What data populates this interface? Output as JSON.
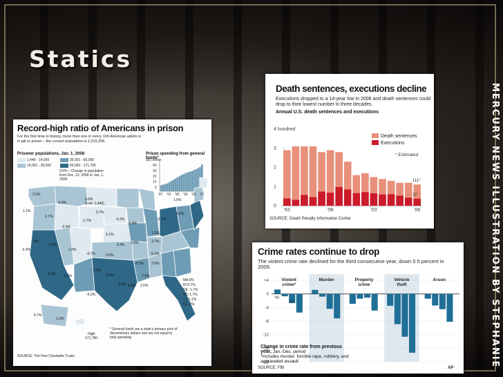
{
  "slide": {
    "title": "Statics",
    "credit": "MERCURY NEWS ILLUSTRATION BY STEPHANIE"
  },
  "prison_map": {
    "title": "Record-high ratio of Americans in prison",
    "subtitle": "For the first time in history, more than one in every 100 American adults is in jail or prison – the current population is 2,319,258.",
    "legend_title": "Prisoner populations, Jan. 1, 2008",
    "legend": [
      {
        "label": "1,440 - 14,000",
        "color": "#dfe9ef"
      },
      {
        "label": "14,001 - 35,000",
        "color": "#a9c5d4"
      },
      {
        "label": "35,001 - 65,000",
        "color": "#6e9cb5"
      },
      {
        "label": "65,001 - 171,790",
        "color": "#2f6786"
      }
    ],
    "change_note": "XX% – Change in population from Dec. 31, 2006 to Jan. 1, 2008",
    "spending_title": "Prison spending from general funds*",
    "spending_axis": [
      "$50 billion",
      "40",
      "30",
      "20",
      "10",
      "0"
    ],
    "spending_years": [
      "'87",
      "'91",
      "'95",
      "'99",
      "'03",
      "'07"
    ],
    "state_labels": [
      "3.3%",
      "5.6%",
      "(Low: 1,440)",
      "-3.9%",
      "1.1%",
      "2.7%",
      "5.7%",
      "-1.7%",
      "-2.9%",
      "-3.2%",
      "-2.4%",
      "-3.7%",
      "1.5%",
      "6.6%",
      "6.1%",
      "5%",
      "1.6%",
      "1.8%",
      "-0.7%",
      "0.5%",
      "6.4%",
      "3.2%",
      "1.2%",
      "5.1%",
      "-2.3%",
      "5.3%",
      "-1.5%",
      "-1.2%",
      "4.3%",
      "4.1%",
      "4.0%",
      "2.5%",
      "-6.2%",
      "1.3%",
      "4.7%",
      "High: 171,790",
      "3.7%",
      "7.2%",
      "2.0%",
      "-0.5%"
    ],
    "table": [
      "MA  0%",
      "RI  0.7%",
      "DE -1.7%",
      "MD  1.7%",
      "CT  1.1%",
      "NJ  -2%"
    ],
    "footnote": "* General funds are a state's primary pool of discretionary dollars and are not equal to total spending",
    "high_label": "High: 171,790",
    "source": "SOURCE: The Pew Charitable Trusts"
  },
  "executions_chart": {
    "title": "Death sentences, executions decline",
    "subtitle": "Executions dropped to a 14-year low in 2008 and death sentences could drop to their lowest number in three decades.",
    "chart_subtitle": "Annual U.S. death sentences and executions",
    "source": "SOURCE: Death Penalty Information Center"
  },
  "crime_chart": {
    "title": "Crime rates continue to drop",
    "subtitle": "The violent crime rate declined for the third consecutive year, down 5.5 percent in 2009.",
    "note_title": "Change in crime rate from previous year,",
    "note_period": "Jan.-Dec. period",
    "note_footnote": "*Includes murder, forcible rape, robbery, and aggravated assault",
    "source": "SOURCE: FBI",
    "credit": "AP"
  },
  "chart_data": [
    {
      "type": "bar",
      "title": "Death sentences, executions decline",
      "xlabel": "",
      "ylabel": "",
      "y_tick_labels": [
        "0",
        "1",
        "2",
        "3",
        "4 hundred"
      ],
      "ylim": [
        0,
        4
      ],
      "x_tick_labels": [
        "'93",
        "'98",
        "'03",
        "'08"
      ],
      "categories": [
        "1993",
        "1994",
        "1995",
        "1996",
        "1997",
        "1998",
        "1999",
        "2000",
        "2001",
        "2002",
        "2003",
        "2004",
        "2005",
        "2006",
        "2007",
        "2008"
      ],
      "series": [
        {
          "name": "Death sentences",
          "color": "#e8907a",
          "values": [
            2.9,
            3.1,
            3.1,
            3.1,
            2.8,
            2.9,
            2.8,
            2.3,
            1.6,
            1.7,
            1.5,
            1.4,
            1.3,
            1.2,
            1.2,
            1.11
          ]
        },
        {
          "name": "Executions",
          "color": "#cc1a2a",
          "values": [
            0.38,
            0.31,
            0.56,
            0.45,
            0.74,
            0.68,
            0.98,
            0.85,
            0.66,
            0.71,
            0.65,
            0.59,
            0.6,
            0.53,
            0.42,
            0.37
          ]
        }
      ],
      "annotations": [
        "* Estimated",
        "111*",
        "37"
      ],
      "legend_position": "top-right",
      "grid": false
    },
    {
      "type": "bar",
      "title": "Crime rates continue to drop",
      "ylim": [
        -20,
        4
      ],
      "y_tick_labels": [
        "+4",
        "0",
        "-4",
        "-8",
        "-12",
        "-16",
        "-20"
      ],
      "groups": [
        "Violent crime*",
        "Murder",
        "Property crime",
        "Vehicle theft",
        "Arson"
      ],
      "years": [
        "'06",
        "'07",
        "'08",
        "'09"
      ],
      "series": [
        {
          "name": "Violent crime*",
          "values": [
            1.3,
            -0.7,
            -2.7,
            -5.5
          ]
        },
        {
          "name": "Murder",
          "values": [
            1.2,
            -0.8,
            -4.4,
            -7.2
          ]
        },
        {
          "name": "Property crime",
          "values": [
            -2.9,
            -1.4,
            -1.1,
            -4.9
          ]
        },
        {
          "name": "Vehicle theft",
          "values": [
            -3.5,
            -8.9,
            -12.6,
            -17.3
          ]
        },
        {
          "name": "Arson",
          "values": [
            -1.4,
            -3.4,
            -4.5,
            -8.2
          ]
        }
      ],
      "grid": true
    }
  ]
}
